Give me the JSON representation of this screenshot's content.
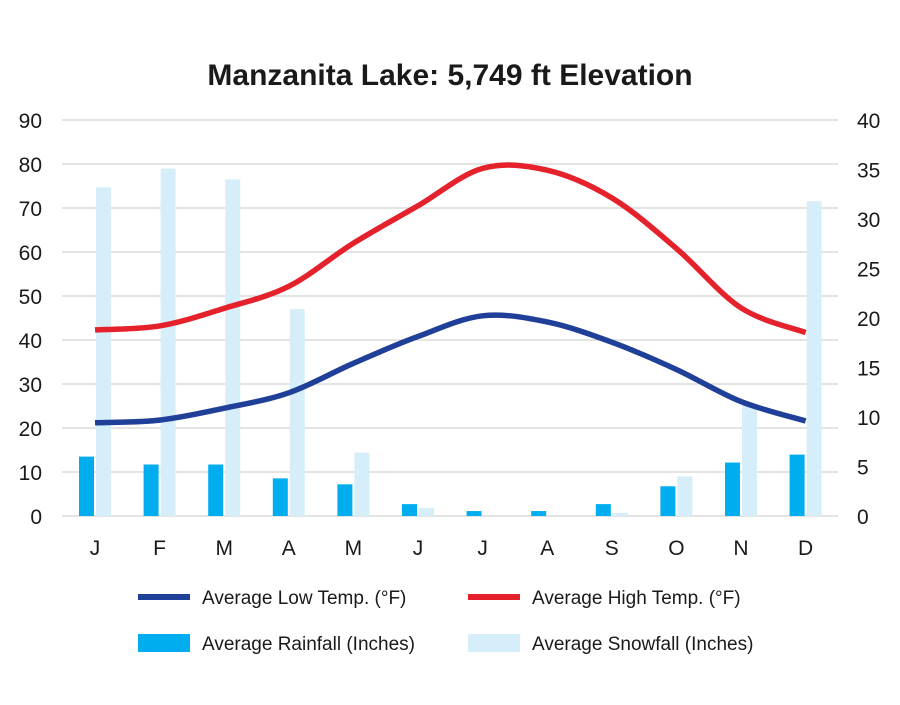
{
  "chart_data": {
    "type": "bar+line",
    "title": "Manzanita Lake: 5,749 ft Elevation",
    "categories": [
      "J",
      "F",
      "M",
      "A",
      "M",
      "J",
      "J",
      "A",
      "S",
      "O",
      "N",
      "D"
    ],
    "y_left": {
      "range": [
        0,
        90
      ],
      "ticks": [
        "0",
        "10",
        "20",
        "30",
        "40",
        "50",
        "60",
        "70",
        "80",
        "90"
      ]
    },
    "y_right": {
      "range": [
        0,
        40
      ],
      "ticks": [
        "0",
        "5",
        "10",
        "15",
        "20",
        "25",
        "30",
        "35",
        "40"
      ]
    },
    "grid": true,
    "legend_position": "bottom",
    "series": [
      {
        "name": "Average Low Temp. (°F)",
        "kind": "line",
        "axis": "left",
        "color": "#1f3f99",
        "values": [
          21.2,
          21.8,
          24.5,
          28.0,
          34.7,
          40.8,
          45.5,
          44.1,
          39.5,
          33.3,
          26.0,
          21.6
        ]
      },
      {
        "name": "Average High Temp. (°F)",
        "kind": "line",
        "axis": "left",
        "color": "#e5212b",
        "values": [
          42.3,
          43.2,
          47.2,
          52.2,
          62.0,
          70.5,
          79.0,
          78.6,
          72.3,
          60.8,
          47.3,
          41.7
        ]
      },
      {
        "name": "Average Rainfall (Inches)",
        "kind": "bar",
        "axis": "right",
        "color": "#00aeef",
        "values": [
          6.0,
          5.2,
          5.2,
          3.8,
          3.2,
          1.2,
          0.5,
          0.5,
          1.2,
          3.0,
          5.4,
          6.2
        ]
      },
      {
        "name": "Average Snowfall (Inches)",
        "kind": "bar",
        "axis": "right",
        "color": "#d5eefa",
        "values": [
          33.2,
          35.1,
          34.0,
          20.9,
          6.4,
          0.8,
          0.0,
          0.0,
          0.3,
          4.0,
          11.3,
          31.8
        ]
      }
    ]
  }
}
